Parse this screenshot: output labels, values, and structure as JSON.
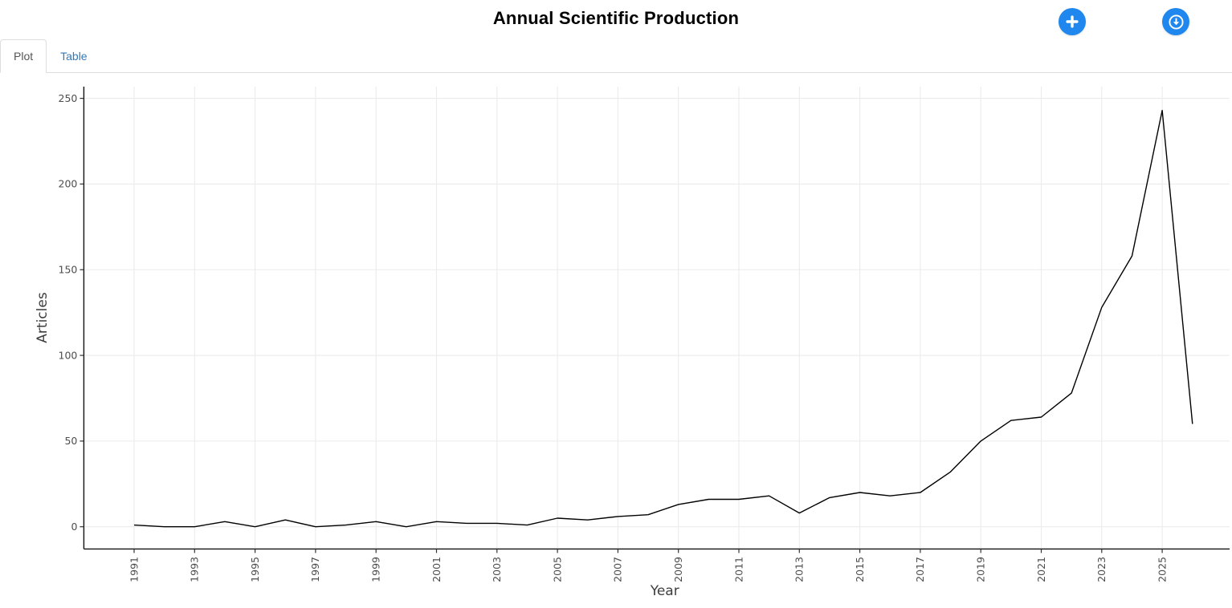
{
  "header": {
    "title": "Annual Scientific Production",
    "accent_color": "#1f87ed",
    "buttons": [
      {
        "name": "add",
        "icon": "plus-icon"
      },
      {
        "name": "export",
        "icon": "download-circle-icon"
      }
    ]
  },
  "tabs": [
    {
      "label": "Plot",
      "active": true
    },
    {
      "label": "Table",
      "active": false
    }
  ],
  "chart_data": {
    "type": "line",
    "title": "Annual Scientific Production",
    "xlabel": "Year",
    "ylabel": "Articles",
    "x": [
      1991,
      1992,
      1993,
      1994,
      1995,
      1996,
      1997,
      1998,
      1999,
      2000,
      2001,
      2002,
      2003,
      2004,
      2005,
      2006,
      2007,
      2008,
      2009,
      2010,
      2011,
      2012,
      2013,
      2014,
      2015,
      2016,
      2017,
      2018,
      2019,
      2020,
      2021,
      2022,
      2023,
      2024,
      2025,
      2026
    ],
    "values": [
      1,
      0,
      0,
      3,
      0,
      4,
      0,
      1,
      3,
      0,
      3,
      2,
      2,
      1,
      5,
      4,
      6,
      7,
      13,
      16,
      16,
      18,
      8,
      17,
      20,
      18,
      20,
      32,
      50,
      62,
      64,
      78,
      128,
      158,
      243,
      60
    ],
    "xticks": [
      1991,
      1993,
      1995,
      1997,
      1999,
      2001,
      2003,
      2005,
      2007,
      2009,
      2011,
      2013,
      2015,
      2017,
      2019,
      2021,
      2023,
      2025
    ],
    "yticks": [
      0,
      50,
      100,
      150,
      200,
      250
    ],
    "ylim": [
      0,
      250
    ],
    "xlim": [
      1989.4,
      2027.3
    ],
    "grid": true,
    "legend": "none",
    "line_color": "#000000",
    "grid_color": "#ebebeb",
    "axis_line_color": "#111111",
    "tick_label_color": "#4d4d4d",
    "axis_title_color": "#3d3d3d"
  }
}
